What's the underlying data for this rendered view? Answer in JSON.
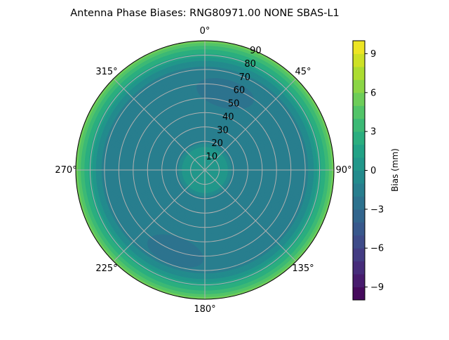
{
  "chart_data": {
    "type": "polar-contour",
    "title": "Antenna Phase Biases: RNG80971.00     NONE SBAS-L1",
    "colormap": "viridis",
    "angular_ticks": [
      "0°",
      "45°",
      "90°",
      "135°",
      "180°",
      "225°",
      "270°",
      "315°"
    ],
    "radial_ticks": [
      "10",
      "20",
      "30",
      "40",
      "50",
      "60",
      "70",
      "80",
      "90"
    ],
    "radial_range": [
      0,
      90
    ],
    "grid": true,
    "colorbar": {
      "label": "Bias (mm)",
      "range": [
        -10,
        10
      ],
      "level_step": 1,
      "ticks": [
        "9",
        "6",
        "3",
        "0",
        "−3",
        "−6",
        "−9"
      ],
      "tick_values": [
        9,
        6,
        3,
        0,
        -3,
        -6,
        -9
      ],
      "placement": "right"
    },
    "radial_profile": {
      "zenith_deg": [
        0,
        15,
        20,
        70,
        75,
        80,
        83,
        86,
        88,
        90
      ],
      "bias_mm": [
        0.5,
        0.5,
        -1.5,
        -1.5,
        -0.5,
        1.5,
        2.5,
        3.5,
        4.5,
        5.5
      ]
    },
    "local_minima": [
      {
        "azimuth_deg": 15,
        "zenith_deg": 55,
        "bias_mm": -2.5
      },
      {
        "azimuth_deg": 200,
        "zenith_deg": 60,
        "bias_mm": -2.5
      }
    ]
  }
}
